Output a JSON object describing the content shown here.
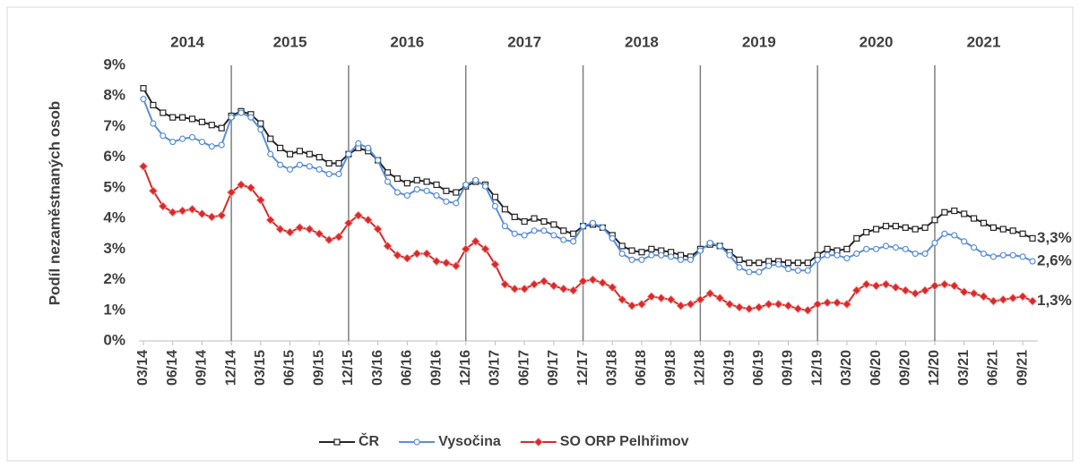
{
  "chart_data": {
    "type": "line",
    "y_label": "Podíl nezaměstnaných osob",
    "year_labels": [
      "2014",
      "2015",
      "2016",
      "2017",
      "2018",
      "2019",
      "2020",
      "2021"
    ],
    "categories": [
      "03/14",
      null,
      null,
      "06/14",
      null,
      null,
      "09/14",
      null,
      null,
      "12/14",
      null,
      null,
      "03/15",
      null,
      null,
      "06/15",
      null,
      null,
      "09/15",
      null,
      null,
      "12/15",
      null,
      null,
      "03/16",
      null,
      null,
      "06/16",
      null,
      null,
      "09/16",
      null,
      null,
      "12/16",
      null,
      null,
      "03/17",
      null,
      null,
      "06/17",
      null,
      null,
      "09/17",
      null,
      null,
      "12/17",
      null,
      null,
      "03/18",
      null,
      null,
      "06/18",
      null,
      null,
      "09/18",
      null,
      null,
      "12/18",
      null,
      null,
      "03/19",
      null,
      null,
      "06/19",
      null,
      null,
      "09/19",
      null,
      null,
      "12/19",
      null,
      null,
      "03/20",
      null,
      null,
      "06/20",
      null,
      null,
      "09/20",
      null,
      null,
      "12/20",
      null,
      null,
      "03/21",
      null,
      null,
      "06/21",
      null,
      null,
      "09/21",
      null
    ],
    "ylim": [
      0,
      9
    ],
    "yticks": [
      {
        "value": 0,
        "label": "0%"
      },
      {
        "value": 1,
        "label": "1%"
      },
      {
        "value": 2,
        "label": "2%"
      },
      {
        "value": 3,
        "label": "3%"
      },
      {
        "value": 4,
        "label": "4%"
      },
      {
        "value": 5,
        "label": "5%"
      },
      {
        "value": 6,
        "label": "6%"
      },
      {
        "value": 7,
        "label": "7%"
      },
      {
        "value": 8,
        "label": "8%"
      },
      {
        "value": 9,
        "label": "9%"
      }
    ],
    "grid": false,
    "legend": "bottom",
    "series": [
      {
        "name": "ČR",
        "color": "#262626",
        "marker": "square",
        "values": [
          8.25,
          7.7,
          7.45,
          7.3,
          7.3,
          7.25,
          7.15,
          7.05,
          6.95,
          7.35,
          7.5,
          7.4,
          7.1,
          6.6,
          6.3,
          6.1,
          6.2,
          6.1,
          6.0,
          5.8,
          5.8,
          6.1,
          6.3,
          6.2,
          5.9,
          5.5,
          5.3,
          5.15,
          5.25,
          5.2,
          5.1,
          4.9,
          4.85,
          5.05,
          5.2,
          5.1,
          4.7,
          4.3,
          4.05,
          3.9,
          4.0,
          3.9,
          3.8,
          3.6,
          3.5,
          3.75,
          3.8,
          3.7,
          3.45,
          3.1,
          2.95,
          2.9,
          3.0,
          2.95,
          2.9,
          2.8,
          2.75,
          3.0,
          3.15,
          3.1,
          2.9,
          2.65,
          2.55,
          2.55,
          2.6,
          2.6,
          2.55,
          2.55,
          2.55,
          2.8,
          3.0,
          2.95,
          3.0,
          3.35,
          3.55,
          3.65,
          3.75,
          3.75,
          3.7,
          3.65,
          3.7,
          3.95,
          4.2,
          4.25,
          4.15,
          4.0,
          3.85,
          3.7,
          3.65,
          3.6,
          3.5,
          3.35
        ],
        "value_labels": [
          null,
          null,
          null,
          null,
          null,
          null,
          null,
          null,
          null,
          null,
          null,
          null,
          null,
          null,
          null,
          null,
          null,
          null,
          null,
          null,
          null,
          null,
          null,
          null,
          null,
          null,
          null,
          null,
          null,
          null,
          null,
          null,
          null,
          null,
          null,
          null,
          null,
          null,
          null,
          null,
          null,
          null,
          null,
          null,
          null,
          null,
          null,
          null,
          null,
          null,
          null,
          null,
          null,
          null,
          null,
          null,
          null,
          null,
          null,
          null,
          null,
          null,
          null,
          null,
          null,
          null,
          null,
          null,
          null,
          null,
          null,
          null,
          null,
          null,
          null,
          null,
          null,
          null,
          null,
          null,
          null,
          null,
          null,
          null,
          null,
          null,
          null,
          null,
          null,
          null,
          null,
          "3,3%"
        ]
      },
      {
        "name": "Vysočina",
        "color": "#5b8fd6",
        "label_color": "#2e75c6",
        "marker": "circle",
        "values": [
          7.9,
          7.1,
          6.7,
          6.5,
          6.6,
          6.65,
          6.5,
          6.35,
          6.4,
          7.3,
          7.45,
          7.3,
          6.9,
          6.1,
          5.75,
          5.6,
          5.75,
          5.7,
          5.6,
          5.45,
          5.45,
          6.1,
          6.45,
          6.3,
          5.9,
          5.2,
          4.85,
          4.75,
          4.95,
          4.9,
          4.75,
          4.55,
          4.5,
          5.1,
          5.25,
          5.05,
          4.4,
          3.75,
          3.5,
          3.45,
          3.6,
          3.6,
          3.45,
          3.3,
          3.25,
          3.75,
          3.85,
          3.7,
          3.35,
          2.85,
          2.65,
          2.65,
          2.8,
          2.8,
          2.75,
          2.65,
          2.65,
          2.95,
          3.2,
          3.1,
          2.8,
          2.4,
          2.25,
          2.25,
          2.45,
          2.5,
          2.35,
          2.3,
          2.3,
          2.65,
          2.8,
          2.8,
          2.7,
          2.85,
          3.0,
          3.0,
          3.1,
          3.05,
          3.0,
          2.85,
          2.85,
          3.2,
          3.5,
          3.45,
          3.25,
          3.05,
          2.85,
          2.75,
          2.8,
          2.8,
          2.75,
          2.6
        ],
        "value_labels": [
          null,
          null,
          null,
          null,
          null,
          null,
          null,
          null,
          null,
          null,
          null,
          null,
          null,
          null,
          null,
          null,
          null,
          null,
          null,
          null,
          null,
          null,
          null,
          null,
          null,
          null,
          null,
          null,
          null,
          null,
          null,
          null,
          null,
          null,
          null,
          null,
          null,
          null,
          null,
          null,
          null,
          null,
          null,
          null,
          null,
          null,
          null,
          null,
          null,
          null,
          null,
          null,
          null,
          null,
          null,
          null,
          null,
          null,
          null,
          null,
          null,
          null,
          null,
          null,
          null,
          null,
          null,
          null,
          null,
          null,
          null,
          null,
          null,
          null,
          null,
          null,
          null,
          null,
          null,
          null,
          null,
          null,
          null,
          null,
          null,
          null,
          null,
          null,
          null,
          null,
          null,
          "2,6%"
        ]
      },
      {
        "name": "SO ORP Pelhřimov",
        "color": "#d62b2b",
        "label_color": "#c00000",
        "marker": "diamond",
        "values": [
          5.7,
          4.9,
          4.4,
          4.2,
          4.25,
          4.3,
          4.15,
          4.05,
          4.1,
          4.85,
          5.1,
          5.0,
          4.6,
          3.95,
          3.65,
          3.55,
          3.7,
          3.65,
          3.5,
          3.3,
          3.4,
          3.85,
          4.1,
          3.95,
          3.65,
          3.1,
          2.8,
          2.7,
          2.85,
          2.85,
          2.6,
          2.55,
          2.45,
          3.0,
          3.25,
          3.0,
          2.5,
          1.85,
          1.7,
          1.7,
          1.85,
          1.95,
          1.8,
          1.7,
          1.65,
          1.95,
          2.0,
          1.9,
          1.75,
          1.35,
          1.15,
          1.2,
          1.45,
          1.4,
          1.35,
          1.15,
          1.2,
          1.35,
          1.55,
          1.4,
          1.2,
          1.1,
          1.05,
          1.1,
          1.2,
          1.2,
          1.15,
          1.05,
          1.0,
          1.2,
          1.25,
          1.25,
          1.2,
          1.65,
          1.85,
          1.8,
          1.85,
          1.75,
          1.65,
          1.55,
          1.65,
          1.8,
          1.85,
          1.8,
          1.6,
          1.55,
          1.45,
          1.3,
          1.35,
          1.4,
          1.45,
          1.3
        ],
        "value_labels": [
          null,
          null,
          null,
          null,
          null,
          null,
          null,
          null,
          null,
          null,
          null,
          null,
          null,
          null,
          null,
          null,
          null,
          null,
          null,
          null,
          null,
          null,
          null,
          null,
          null,
          null,
          null,
          null,
          null,
          null,
          null,
          null,
          null,
          null,
          null,
          null,
          null,
          null,
          null,
          null,
          null,
          null,
          null,
          null,
          null,
          null,
          null,
          null,
          null,
          null,
          null,
          null,
          null,
          null,
          null,
          null,
          null,
          null,
          null,
          null,
          null,
          null,
          null,
          null,
          null,
          null,
          null,
          null,
          null,
          null,
          null,
          null,
          null,
          null,
          null,
          null,
          null,
          null,
          null,
          null,
          null,
          null,
          null,
          null,
          null,
          null,
          null,
          null,
          null,
          null,
          null,
          "1,3%"
        ]
      }
    ]
  }
}
